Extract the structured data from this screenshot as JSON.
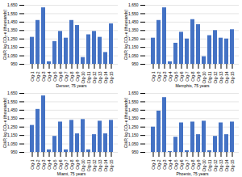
{
  "chart_data": [
    {
      "type": "bar",
      "xlabel": "Denver, 75 years",
      "ylabel": "GWP, kg CO₂-e (thousands)",
      "categories": [
        "Ctg-1",
        "Ctg-2",
        "Ctg-3",
        "Ctg-4",
        "Ctg-5",
        "Ctg-6",
        "Ctg-7",
        "Ctg-8",
        "Ctg-9",
        "Ctg-10",
        "Ctg-11",
        "Ctg-12",
        "Ctg-13",
        "Ctg-14",
        "Ctg-15"
      ],
      "values": [
        1270,
        1470,
        1620,
        980,
        1220,
        1340,
        1260,
        1470,
        1410,
        1030,
        1300,
        1340,
        1270,
        1090,
        1430
      ],
      "color": "#4472C4",
      "ylim": [
        950,
        1650
      ],
      "yticks": [
        950,
        {
          "value": 1050,
          "label": "1,050"
        },
        {
          "value": 1150,
          "label": "1,150"
        },
        {
          "value": 1250,
          "label": "1,250"
        },
        {
          "value": 1350,
          "label": "1,350"
        },
        {
          "value": 1450,
          "label": "1,450"
        },
        {
          "value": 1550,
          "label": "1,550"
        },
        {
          "value": 1650,
          "label": "1,650"
        }
      ],
      "grid": true
    },
    {
      "type": "bar",
      "xlabel": "Memphis, 75 years",
      "ylabel": "GWP, kg CO₂-e (thousands)",
      "categories": [
        "Ctg-1",
        "Ctg-2",
        "Ctg-3",
        "Ctg-4",
        "Ctg-5",
        "Ctg-6",
        "Ctg-7",
        "Ctg-8",
        "Ctg-9",
        "Ctg-10",
        "Ctg-11",
        "Ctg-12",
        "Ctg-13",
        "Ctg-14",
        "Ctg-15"
      ],
      "values": [
        1260,
        1470,
        1620,
        980,
        1200,
        1330,
        1250,
        1480,
        1420,
        1040,
        1290,
        1350,
        1260,
        1250,
        1360
      ],
      "color": "#4472C4",
      "ylim": [
        950,
        1650
      ],
      "yticks": [
        950,
        {
          "value": 1050,
          "label": "1,050"
        },
        {
          "value": 1150,
          "label": "1,150"
        },
        {
          "value": 1250,
          "label": "1,250"
        },
        {
          "value": 1350,
          "label": "1,350"
        },
        {
          "value": 1450,
          "label": "1,450"
        },
        {
          "value": 1550,
          "label": "1,550"
        },
        {
          "value": 1650,
          "label": "1,650"
        }
      ],
      "grid": true
    },
    {
      "type": "bar",
      "xlabel": "Miami, 75 years",
      "ylabel": "GWP, kg CO₂-e (thousands)",
      "categories": [
        "Ctg-1",
        "Ctg-2",
        "Ctg-3",
        "Ctg-4",
        "Ctg-5",
        "Ctg-6",
        "Ctg-7",
        "Ctg-8",
        "Ctg-9",
        "Ctg-10",
        "Ctg-11",
        "Ctg-12",
        "Ctg-13",
        "Ctg-14",
        "Ctg-15"
      ],
      "values": [
        1270,
        1460,
        1620,
        980,
        1140,
        1310,
        980,
        1330,
        1170,
        1340,
        980,
        1160,
        1320,
        1170,
        1330
      ],
      "color": "#4472C4",
      "ylim": [
        950,
        1650
      ],
      "yticks": [
        950,
        {
          "value": 1050,
          "label": "1,050"
        },
        {
          "value": 1150,
          "label": "1,150"
        },
        {
          "value": 1250,
          "label": "1,250"
        },
        {
          "value": 1350,
          "label": "1,350"
        },
        {
          "value": 1450,
          "label": "1,450"
        },
        {
          "value": 1550,
          "label": "1,550"
        },
        {
          "value": 1650,
          "label": "1,650"
        }
      ],
      "grid": true
    },
    {
      "type": "bar",
      "xlabel": "Phoenix, 75 years",
      "ylabel": "GWP, kg CO₂-e (thousands)",
      "categories": [
        "Ctg-1",
        "Ctg-2",
        "Ctg-3",
        "Ctg-4",
        "Ctg-5",
        "Ctg-6",
        "Ctg-7",
        "Ctg-8",
        "Ctg-9",
        "Ctg-10",
        "Ctg-11",
        "Ctg-12",
        "Ctg-13",
        "Ctg-14",
        "Ctg-15"
      ],
      "values": [
        1250,
        1440,
        1600,
        960,
        1130,
        1300,
        970,
        1310,
        1160,
        1320,
        970,
        1140,
        1300,
        1160,
        1310
      ],
      "color": "#4472C4",
      "ylim": [
        950,
        1650
      ],
      "yticks": [
        950,
        {
          "value": 1050,
          "label": "1,050"
        },
        {
          "value": 1150,
          "label": "1,150"
        },
        {
          "value": 1250,
          "label": "1,250"
        },
        {
          "value": 1350,
          "label": "1,350"
        },
        {
          "value": 1450,
          "label": "1,450"
        },
        {
          "value": 1550,
          "label": "1,550"
        },
        {
          "value": 1650,
          "label": "1,650"
        }
      ],
      "grid": true
    }
  ]
}
